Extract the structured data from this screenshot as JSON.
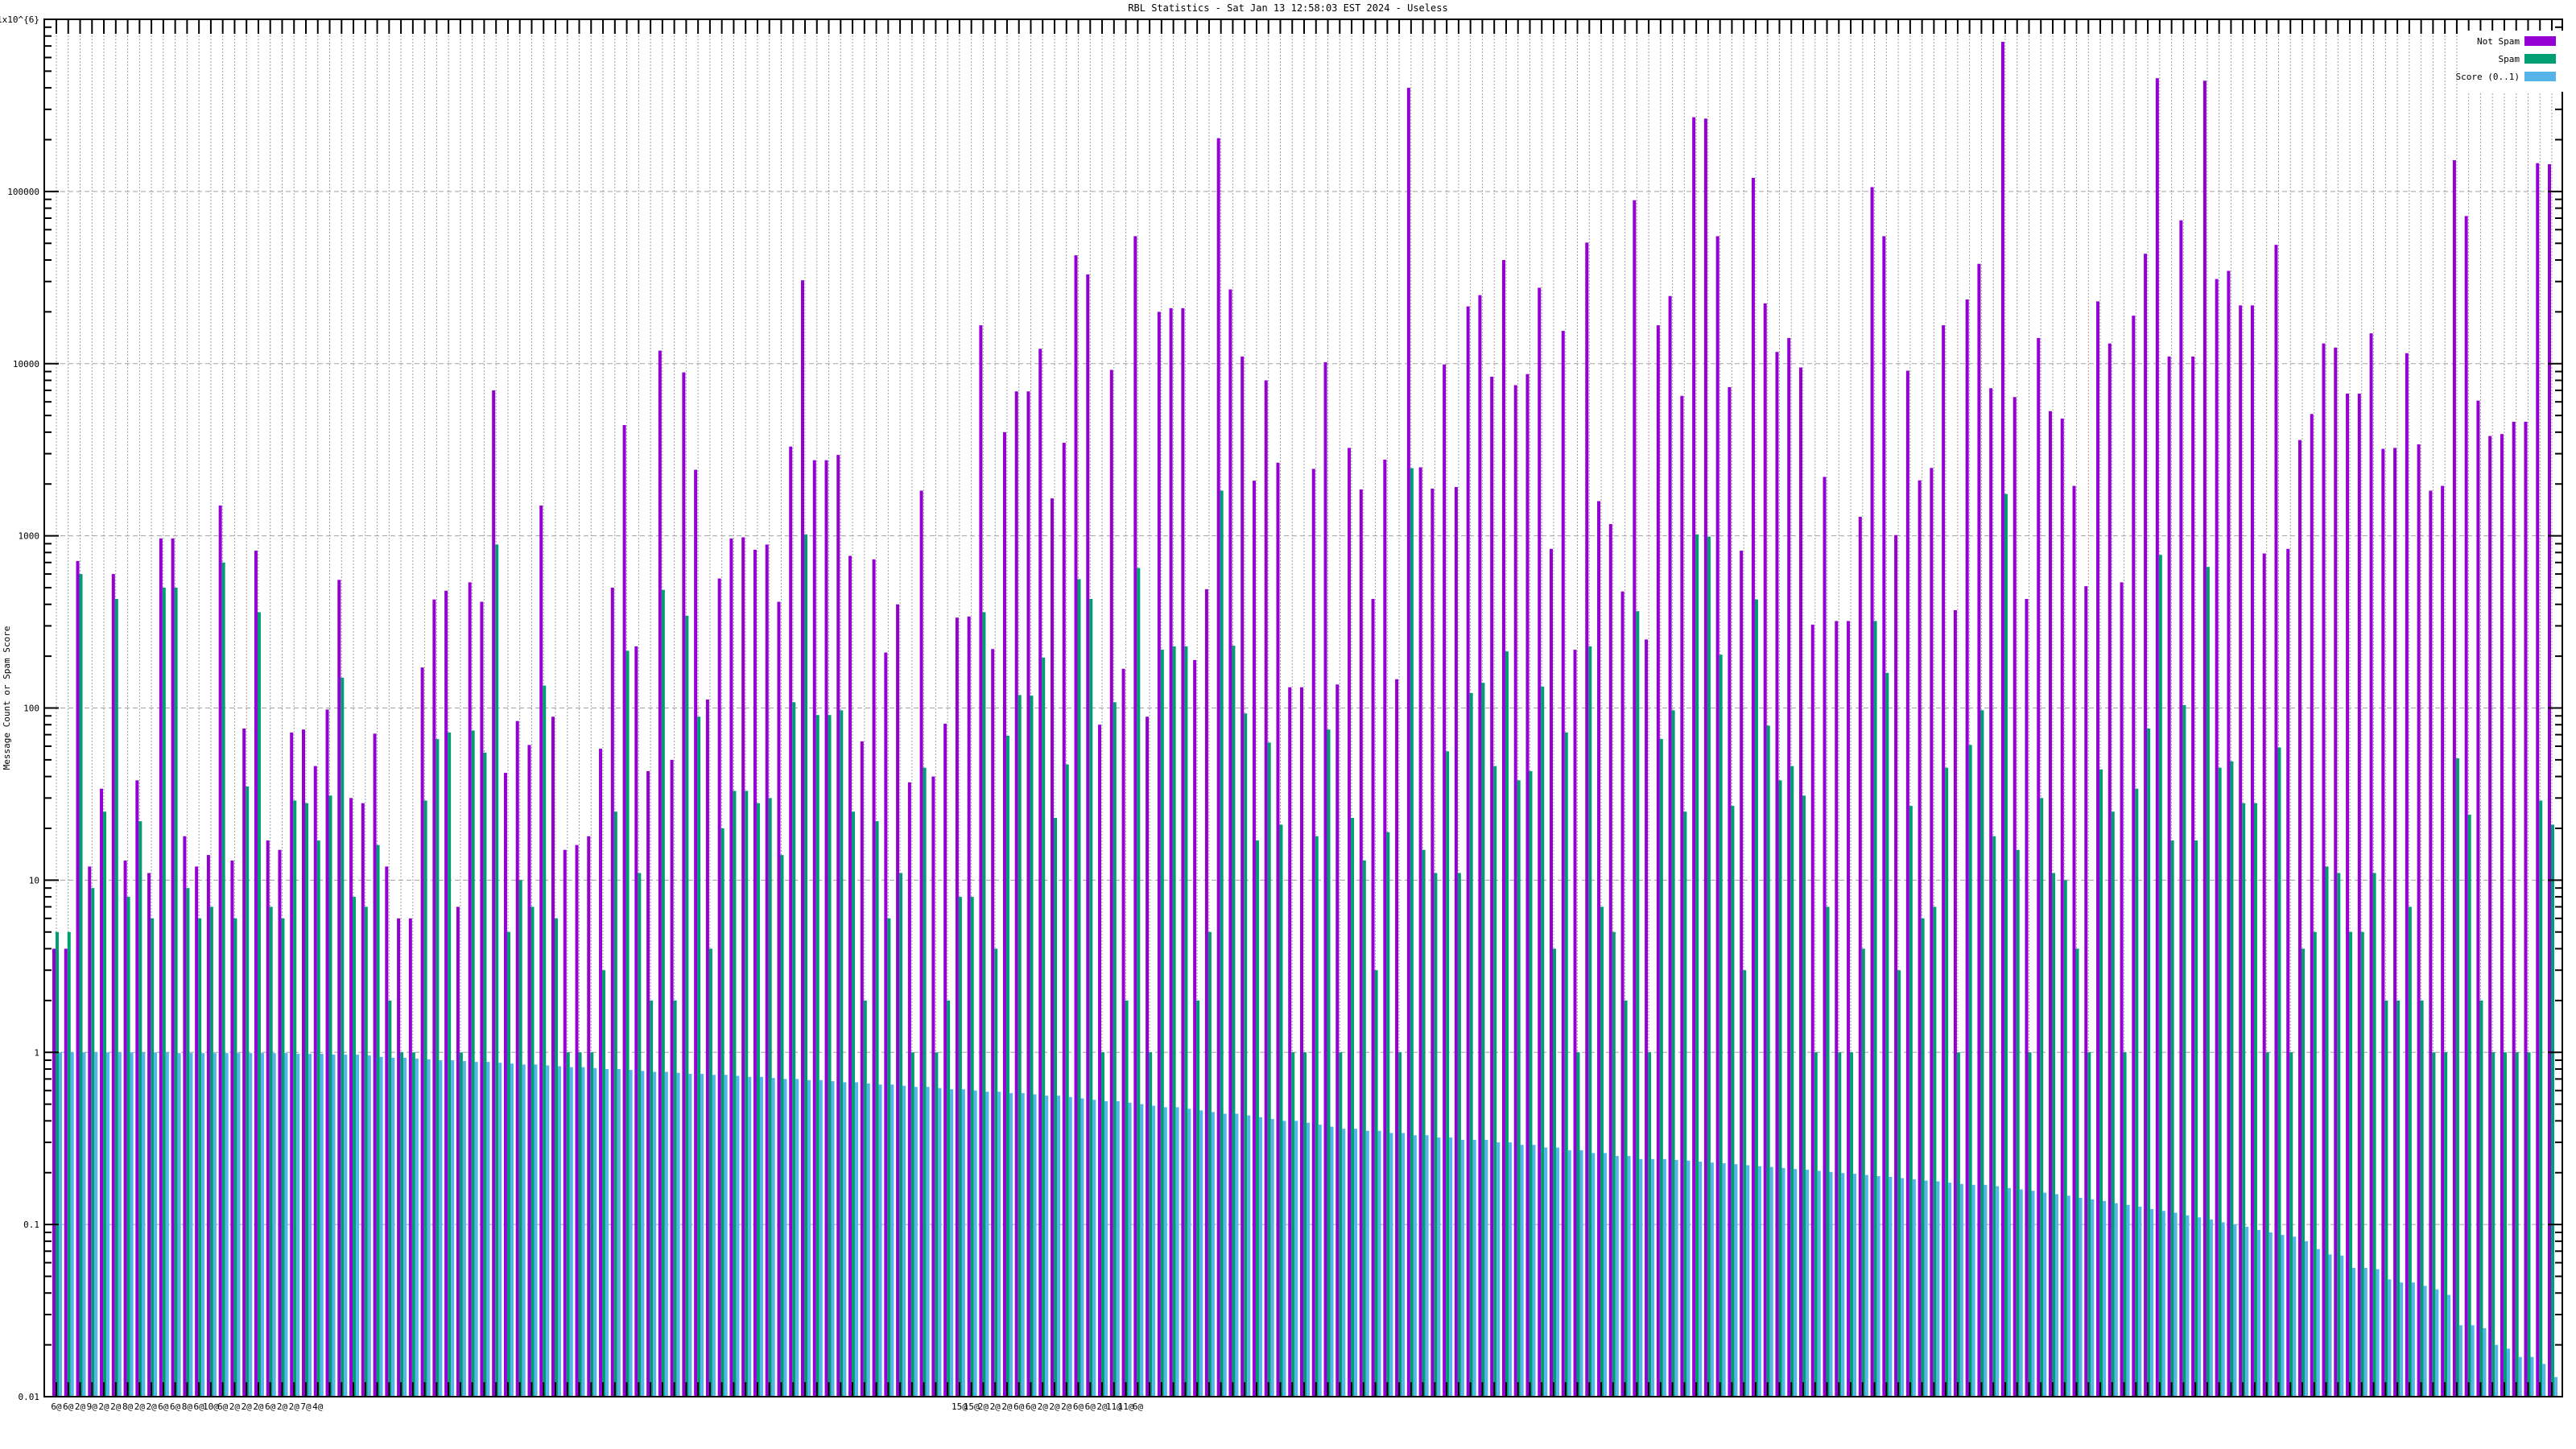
{
  "chart_data": {
    "type": "bar",
    "title": "RBL Statistics - Sat Jan 13 12:58:03 EST 2024 - Useless",
    "ylabel": "Message Count or Spam Score",
    "xlabel": "",
    "yscale": "log",
    "ylim": [
      0.01,
      1000000
    ],
    "y_tick_labels": [
      "0.01",
      "0.1",
      "1",
      "10",
      "100",
      "1000",
      "10000",
      "100000",
      "1x10^{6}"
    ],
    "y_tick_values": [
      0.01,
      0.1,
      1,
      10,
      100,
      1000,
      10000,
      100000,
      1000000
    ],
    "grid": true,
    "legend_position": "top-right",
    "colors": {
      "not_spam": "#9400d3",
      "spam": "#009e73",
      "score": "#56b4e9",
      "axis": "#000000",
      "grid": "#a0a0a0"
    },
    "x_tick_labels": {
      "1": "6@",
      "2": "6@",
      "3": "2@",
      "4": "9@",
      "5": "2@",
      "6": "2@",
      "7": "8@",
      "8": "2@",
      "9": "2@",
      "10": "6@",
      "11": "6@",
      "12": "8@",
      "13": "6@",
      "14": "10@",
      "15": "6@",
      "16": "2@",
      "17": "2@",
      "18": "2@",
      "19": "6@",
      "20": "2@",
      "21": "2@",
      "22": "7@",
      "23": "4@",
      "77": "15@",
      "78": "15@",
      "79": "2@",
      "80": "2@",
      "81": "2@",
      "82": "6@",
      "83": "6@",
      "84": "2@",
      "85": "2@",
      "86": "2@",
      "87": "6@",
      "88": "6@",
      "89": "2@",
      "90": "11@",
      "91": "11@",
      "92": "6@"
    },
    "series": [
      {
        "name": "Not Spam",
        "values": [
          4,
          4,
          714,
          12,
          34,
          600,
          13,
          38,
          11,
          966,
          966,
          18,
          12,
          14,
          1500,
          13,
          76,
          820,
          17,
          15,
          72,
          75,
          46,
          98,
          555,
          30,
          28,
          71,
          12,
          6,
          6,
          172,
          427,
          480,
          7,
          537,
          414,
          7000,
          42,
          84,
          61,
          1500,
          89,
          15,
          16,
          18,
          58,
          500,
          4400,
          228,
          43,
          11900,
          50,
          8900,
          2420,
          112,
          565,
          966,
          980,
          830,
          890,
          414,
          3300,
          30500,
          2750,
          2750,
          2950,
          765,
          64,
          730,
          210,
          400,
          37,
          1830,
          40,
          81,
          335,
          340,
          16700,
          220,
          4000,
          6900,
          6900,
          12200,
          1650,
          3470,
          42600,
          33000,
          80,
          9200,
          169,
          55000,
          89,
          20000,
          21000,
          21000,
          190,
          490,
          204000,
          27000,
          11000,
          2090,
          8000,
          2660,
          132,
          132,
          2450,
          10200,
          137,
          3240,
          1860,
          430,
          2770,
          147,
          400000,
          2500,
          1880,
          9900,
          1920,
          21500,
          25000,
          8400,
          40000,
          7500,
          8700,
          27600,
          840,
          15500,
          218,
          50500,
          1590,
          1170,
          475,
          89000,
          250,
          16700,
          24700,
          6500,
          270000,
          265000,
          55000,
          7300,
          820,
          120000,
          22400,
          11700,
          14100,
          9500,
          305,
          2200,
          320,
          320,
          1290,
          106000,
          55000,
          1010,
          9100,
          2100,
          2480,
          16700,
          370,
          23600,
          38000,
          7200,
          740000,
          6400,
          430,
          14100,
          5300,
          4800,
          1950,
          510,
          23000,
          13100,
          537,
          19000,
          43500,
          455000,
          11000,
          68000,
          11000,
          440000,
          31000,
          34600,
          21800,
          21800,
          790,
          49000,
          840,
          3600,
          5100,
          13100,
          12400,
          6700,
          6700,
          15000,
          3200,
          3240,
          11500,
          3400,
          1830,
          1950,
          152000,
          72000,
          6100,
          3800,
          3900,
          4600,
          4600,
          146000,
          144000
        ]
      },
      {
        "name": "Spam",
        "values": [
          5,
          5,
          600,
          9,
          25,
          430,
          8,
          22,
          6,
          500,
          500,
          9,
          6,
          7,
          700,
          6,
          35,
          360,
          7,
          6,
          29,
          28,
          17,
          31,
          150,
          8,
          7,
          16,
          2,
          1,
          1,
          29,
          66,
          72,
          1,
          74,
          55,
          890,
          5,
          10,
          7,
          135,
          6,
          1,
          1,
          1,
          3,
          25,
          215,
          11,
          2,
          485,
          2,
          343,
          89,
          4,
          20,
          33,
          33,
          28,
          30,
          14,
          108,
          1020,
          91,
          91,
          97,
          25,
          2,
          22,
          6,
          11,
          1,
          45,
          1,
          2,
          8,
          8,
          360,
          4,
          69,
          119,
          118,
          196,
          23,
          47,
          560,
          430,
          1,
          108,
          2,
          650,
          1,
          218,
          228,
          228,
          2,
          5,
          1830,
          230,
          93,
          17,
          63,
          21,
          1,
          1,
          18,
          75,
          1,
          23,
          13,
          3,
          19,
          1,
          2470,
          15,
          11,
          56,
          11,
          122,
          140,
          46,
          213,
          38,
          43,
          133,
          4,
          72,
          1,
          228,
          7,
          5,
          2,
          365,
          1,
          66,
          97,
          25,
          1020,
          990,
          204,
          27,
          3,
          427,
          79,
          38,
          46,
          31,
          1,
          7,
          1,
          1,
          4,
          320,
          160,
          3,
          27,
          6,
          7,
          45,
          1,
          61,
          97,
          18,
          1750,
          15,
          1,
          30,
          11,
          10,
          4,
          1,
          44,
          25,
          1,
          34,
          76,
          775,
          17,
          104,
          17,
          660,
          45,
          49,
          28,
          28,
          1,
          59,
          1,
          4,
          5,
          12,
          11,
          5,
          5,
          11,
          2,
          2,
          7,
          2,
          1,
          1,
          51,
          24,
          2,
          1,
          1,
          1,
          1,
          29,
          21
        ]
      },
      {
        "name": "Score (0..1)",
        "values": [
          1,
          1,
          1,
          1,
          1,
          1,
          1,
          1,
          1,
          1,
          0.99,
          0.99,
          0.99,
          0.99,
          0.99,
          0.99,
          0.99,
          0.99,
          0.99,
          0.99,
          0.98,
          0.98,
          0.98,
          0.97,
          0.97,
          0.97,
          0.96,
          0.94,
          0.93,
          0.93,
          0.92,
          0.91,
          0.9,
          0.9,
          0.89,
          0.88,
          0.88,
          0.87,
          0.86,
          0.85,
          0.85,
          0.84,
          0.83,
          0.82,
          0.82,
          0.81,
          0.8,
          0.8,
          0.79,
          0.78,
          0.77,
          0.77,
          0.76,
          0.75,
          0.75,
          0.74,
          0.74,
          0.73,
          0.72,
          0.72,
          0.71,
          0.7,
          0.7,
          0.69,
          0.69,
          0.68,
          0.67,
          0.67,
          0.66,
          0.65,
          0.65,
          0.64,
          0.63,
          0.63,
          0.62,
          0.61,
          0.61,
          0.6,
          0.59,
          0.59,
          0.58,
          0.58,
          0.57,
          0.56,
          0.56,
          0.55,
          0.54,
          0.53,
          0.52,
          0.52,
          0.51,
          0.5,
          0.49,
          0.48,
          0.48,
          0.47,
          0.46,
          0.45,
          0.44,
          0.44,
          0.43,
          0.42,
          0.41,
          0.4,
          0.4,
          0.39,
          0.38,
          0.37,
          0.36,
          0.36,
          0.35,
          0.35,
          0.34,
          0.34,
          0.33,
          0.33,
          0.32,
          0.32,
          0.31,
          0.31,
          0.31,
          0.3,
          0.3,
          0.29,
          0.29,
          0.28,
          0.28,
          0.27,
          0.27,
          0.26,
          0.26,
          0.25,
          0.25,
          0.24,
          0.24,
          0.24,
          0.237,
          0.235,
          0.232,
          0.229,
          0.227,
          0.224,
          0.221,
          0.218,
          0.216,
          0.213,
          0.21,
          0.208,
          0.205,
          0.202,
          0.199,
          0.197,
          0.194,
          0.191,
          0.189,
          0.186,
          0.183,
          0.18,
          0.178,
          0.175,
          0.172,
          0.17,
          0.17,
          0.167,
          0.163,
          0.16,
          0.157,
          0.153,
          0.15,
          0.147,
          0.143,
          0.14,
          0.137,
          0.133,
          0.13,
          0.127,
          0.123,
          0.12,
          0.117,
          0.113,
          0.11,
          0.107,
          0.103,
          0.1,
          0.097,
          0.093,
          0.09,
          0.087,
          0.085,
          0.08,
          0.072,
          0.067,
          0.066,
          0.056,
          0.056,
          0.055,
          0.048,
          0.046,
          0.046,
          0.044,
          0.042,
          0.039,
          0.026,
          0.026,
          0.025,
          0.02,
          0.019,
          0.017,
          0.017,
          0.0155,
          0.013
        ]
      }
    ]
  }
}
